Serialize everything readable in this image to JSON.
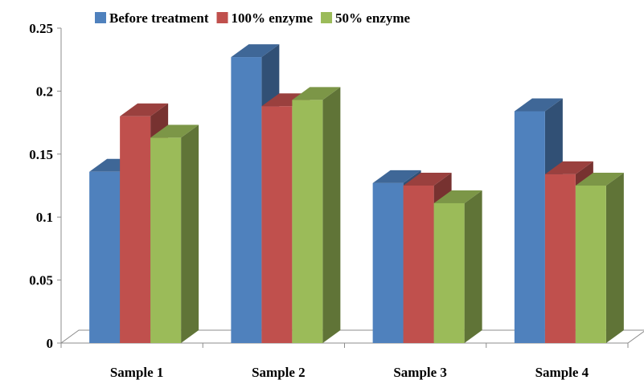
{
  "chart_data": {
    "type": "bar",
    "style": "3d-clustered-column",
    "categories": [
      "Sample 1",
      "Sample 2",
      "Sample 3",
      "Sample 4"
    ],
    "series": [
      {
        "name": "Before treatment",
        "values": [
          0.136,
          0.227,
          0.127,
          0.184
        ],
        "color": "#4F81BD"
      },
      {
        "name": "100% enzyme",
        "values": [
          0.18,
          0.188,
          0.125,
          0.134
        ],
        "color": "#C0504D"
      },
      {
        "name": "50% enzyme",
        "values": [
          0.163,
          0.193,
          0.111,
          0.125
        ],
        "color": "#9BBB59"
      }
    ],
    "y_ticks": [
      "0",
      "0.05",
      "0.1",
      "0.15",
      "0.2",
      "0.25"
    ],
    "ylim": [
      0,
      0.25
    ],
    "grid": false,
    "legend_position": "top"
  }
}
